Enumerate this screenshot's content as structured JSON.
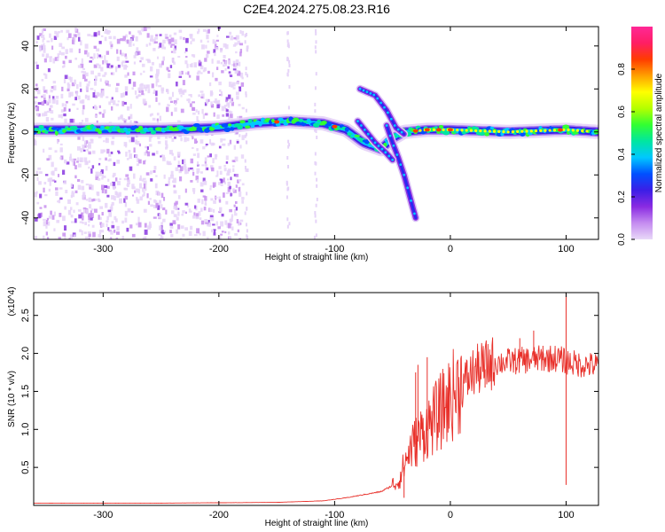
{
  "figure": {
    "title": "C2E4.2024.275.08.23.R16"
  },
  "chart_data": [
    {
      "type": "heatmap",
      "xlabel": "Height of straight line (km)",
      "ylabel": "Frequency (Hz)",
      "xlim": [
        -360,
        128
      ],
      "ylim": [
        -50,
        49
      ],
      "xticks": [
        -300,
        -200,
        -100,
        0,
        100
      ],
      "yticks": [
        -40,
        -20,
        0,
        20,
        40
      ],
      "colorbar": {
        "label": "Normalized spectral amplitude",
        "range": [
          0,
          1
        ],
        "ticks": [
          0.0,
          0.2,
          0.4,
          0.6,
          0.8
        ],
        "colors": [
          "#e8d8f8",
          "#c58cf0",
          "#8a2be2",
          "#3c1ee6",
          "#0050ff",
          "#00c8ff",
          "#00e6a0",
          "#32ff32",
          "#b4ff00",
          "#ffff00",
          "#ffa000",
          "#ff3c00",
          "#ff1e64",
          "#ff2896"
        ]
      },
      "scatter_region": {
        "x": [
          -360,
          -180
        ],
        "y": [
          -50,
          49
        ]
      },
      "main_band": [
        {
          "x": -360,
          "y": 1
        },
        {
          "x": -300,
          "y": 1
        },
        {
          "x": -250,
          "y": 1
        },
        {
          "x": -200,
          "y": 2
        },
        {
          "x": -170,
          "y": 4
        },
        {
          "x": -140,
          "y": 5
        },
        {
          "x": -110,
          "y": 4
        },
        {
          "x": -90,
          "y": 1
        },
        {
          "x": -75,
          "y": -5
        },
        {
          "x": -60,
          "y": -8
        },
        {
          "x": -50,
          "y": -3
        },
        {
          "x": -40,
          "y": 0
        },
        {
          "x": -20,
          "y": 1
        },
        {
          "x": 0,
          "y": 1
        },
        {
          "x": 50,
          "y": 0
        },
        {
          "x": 100,
          "y": 1
        },
        {
          "x": 128,
          "y": 0
        }
      ],
      "branches": [
        {
          "name": "upper-branch",
          "points": [
            {
              "x": -78,
              "y": 20
            },
            {
              "x": -65,
              "y": 17
            },
            {
              "x": -55,
              "y": 10
            },
            {
              "x": -47,
              "y": 2
            },
            {
              "x": -40,
              "y": -1
            }
          ]
        },
        {
          "name": "lower-branch",
          "points": [
            {
              "x": -55,
              "y": 3
            },
            {
              "x": -50,
              "y": -5
            },
            {
              "x": -45,
              "y": -12
            },
            {
              "x": -40,
              "y": -20
            },
            {
              "x": -30,
              "y": -40
            }
          ]
        },
        {
          "name": "cross-branch",
          "points": [
            {
              "x": -80,
              "y": 5
            },
            {
              "x": -65,
              "y": -5
            },
            {
              "x": -55,
              "y": -10
            },
            {
              "x": -50,
              "y": -13
            }
          ]
        }
      ],
      "peak_highlights_x": [
        -150,
        -100,
        -30,
        -20,
        -10,
        0,
        95
      ]
    },
    {
      "type": "line",
      "xlabel": "Height of straight line (km)",
      "ylabel": "SNR (10 * v/v)",
      "y_multiplier": "(x10^4)",
      "xlim": [
        -360,
        128
      ],
      "ylim": [
        0,
        2.8
      ],
      "xticks": [
        -300,
        -200,
        -100,
        0,
        100
      ],
      "yticks": [
        0.5,
        1.0,
        1.5,
        2.0,
        2.5
      ],
      "series": [
        {
          "color": "#e8302a",
          "envelope": [
            {
              "x": -360,
              "y": 0.03
            },
            {
              "x": -250,
              "y": 0.03
            },
            {
              "x": -150,
              "y": 0.04
            },
            {
              "x": -110,
              "y": 0.06
            },
            {
              "x": -90,
              "y": 0.1
            },
            {
              "x": -60,
              "y": 0.18
            },
            {
              "x": -45,
              "y": 0.3
            },
            {
              "x": -35,
              "y": 0.7
            },
            {
              "x": -25,
              "y": 0.9
            },
            {
              "x": -10,
              "y": 1.15
            },
            {
              "x": 5,
              "y": 1.45
            },
            {
              "x": 20,
              "y": 1.72
            },
            {
              "x": 40,
              "y": 1.86
            },
            {
              "x": 70,
              "y": 1.9
            },
            {
              "x": 90,
              "y": 1.92
            },
            {
              "x": 100,
              "y": 1.88
            },
            {
              "x": 110,
              "y": 1.84
            },
            {
              "x": 128,
              "y": 1.82
            }
          ],
          "spikes": [
            {
              "x": -28,
              "y": 1.85
            },
            {
              "x": -30,
              "y": 1.75
            },
            {
              "x": -20,
              "y": 1.95
            },
            {
              "x": -10,
              "y": 1.3
            },
            {
              "x": 30,
              "y": 1.55
            },
            {
              "x": 60,
              "y": 2.2
            },
            {
              "x": 72,
              "y": 2.3
            },
            {
              "x": 80,
              "y": 2.1
            },
            {
              "x": 100,
              "y": 2.8
            }
          ],
          "dips": [
            {
              "x": -40,
              "y": 0.1
            },
            {
              "x": 100,
              "y": 0.27
            }
          ]
        }
      ]
    }
  ]
}
